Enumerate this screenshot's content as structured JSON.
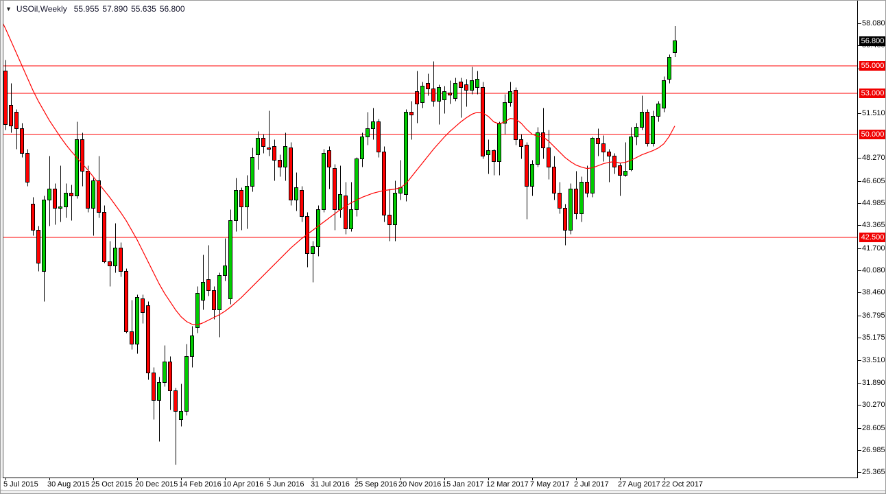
{
  "header": {
    "symbol_timeframe": "USOil,Weekly",
    "open": "55.955",
    "high": "57.890",
    "low": "55.635",
    "close": "56.800"
  },
  "chart_data": {
    "type": "candlestick",
    "symbol": "USOil",
    "timeframe": "Weekly",
    "title": "USOil,Weekly  55.955 57.890 55.635 56.800",
    "last_ohlc": {
      "open": 55.955,
      "high": 57.89,
      "low": 55.635,
      "close": 56.8
    },
    "grid": false,
    "legend_position": "none",
    "y_axis": {
      "range": [
        25.365,
        58.08
      ],
      "tick_labels": [
        "58.080",
        "56.460",
        "54.795",
        "51.510",
        "48.270",
        "46.605",
        "44.985",
        "43.365",
        "41.700",
        "40.080",
        "38.460",
        "36.795",
        "35.175",
        "33.510",
        "31.890",
        "30.270",
        "28.605",
        "26.985",
        "25.365"
      ]
    },
    "x_axis": {
      "labels": [
        {
          "label": "5 Jul 2015",
          "index": 0
        },
        {
          "label": "30 Aug 2015",
          "index": 8
        },
        {
          "label": "25 Oct 2015",
          "index": 16
        },
        {
          "label": "20 Dec 2015",
          "index": 24
        },
        {
          "label": "14 Feb 2016",
          "index": 32
        },
        {
          "label": "10 Apr 2016",
          "index": 40
        },
        {
          "label": "5 Jun 2016",
          "index": 48
        },
        {
          "label": "31 Jul 2016",
          "index": 56
        },
        {
          "label": "25 Sep 2016",
          "index": 64
        },
        {
          "label": "20 Nov 2016",
          "index": 72
        },
        {
          "label": "15 Jan 2017",
          "index": 80
        },
        {
          "label": "12 Mar 2017",
          "index": 88
        },
        {
          "label": "7 May 2017",
          "index": 96
        },
        {
          "label": "2 Jul 2017",
          "index": 104
        },
        {
          "label": "27 Aug 2017",
          "index": 112
        },
        {
          "label": "22 Oct 2017",
          "index": 120
        }
      ]
    },
    "h_lines": [
      55.0,
      53.0,
      50.0,
      42.5
    ],
    "badges": [
      {
        "text": "56.800",
        "value": 56.8,
        "style": "price"
      },
      {
        "text": "55.000",
        "value": 55.0,
        "style": "level"
      },
      {
        "text": "53.000",
        "value": 53.0,
        "style": "level"
      },
      {
        "text": "50.000",
        "value": 50.0,
        "style": "level"
      },
      {
        "text": "42.500",
        "value": 42.5,
        "style": "level"
      }
    ],
    "edge_candle": [
      55.2,
      55.4,
      50.4,
      50.6
    ],
    "candles": [
      [
        54.6,
        55.4,
        50.3,
        50.7
      ],
      [
        52.1,
        53.7,
        50.1,
        50.6
      ],
      [
        51.6,
        51.8,
        48.9,
        50.4
      ],
      [
        50.4,
        50.8,
        48.3,
        48.6
      ],
      [
        48.6,
        48.9,
        46.2,
        46.5
      ],
      [
        44.9,
        45.4,
        42.6,
        43.0
      ],
      [
        43.0,
        43.3,
        40.0,
        40.6
      ],
      [
        40.0,
        45.5,
        37.8,
        45.2
      ],
      [
        45.2,
        48.4,
        43.3,
        46.0
      ],
      [
        46.0,
        46.4,
        43.4,
        44.6
      ],
      [
        44.6,
        47.7,
        43.6,
        44.7
      ],
      [
        44.7,
        46.4,
        43.9,
        45.7
      ],
      [
        45.7,
        46.3,
        43.7,
        45.5
      ],
      [
        45.5,
        50.9,
        45.3,
        49.6
      ],
      [
        49.6,
        50.1,
        46.2,
        47.3
      ],
      [
        47.3,
        47.7,
        44.3,
        44.6
      ],
      [
        44.6,
        46.8,
        42.6,
        46.6
      ],
      [
        46.6,
        48.4,
        43.9,
        44.3
      ],
      [
        44.3,
        44.8,
        40.6,
        40.7
      ],
      [
        40.7,
        42.2,
        38.9,
        40.4
      ],
      [
        40.4,
        43.5,
        39.9,
        41.7
      ],
      [
        41.7,
        42.1,
        39.6,
        40.0
      ],
      [
        40.0,
        40.2,
        35.5,
        35.6
      ],
      [
        35.6,
        37.9,
        34.3,
        34.7
      ],
      [
        34.7,
        38.3,
        34.0,
        38.1
      ],
      [
        38.0,
        38.3,
        36.2,
        37.0
      ],
      [
        37.5,
        37.8,
        32.1,
        32.6
      ],
      [
        32.6,
        33.0,
        29.2,
        30.6
      ],
      [
        30.6,
        32.3,
        27.6,
        31.9
      ],
      [
        31.9,
        34.6,
        31.6,
        33.4
      ],
      [
        33.4,
        33.8,
        29.9,
        31.3
      ],
      [
        31.3,
        31.5,
        25.9,
        29.8
      ],
      [
        29.2,
        31.8,
        28.7,
        29.8
      ],
      [
        29.8,
        34.7,
        29.5,
        33.8
      ],
      [
        33.8,
        36.0,
        33.0,
        35.3
      ],
      [
        35.9,
        38.9,
        35.5,
        38.4
      ],
      [
        37.9,
        41.2,
        37.2,
        39.2
      ],
      [
        39.4,
        41.9,
        38.2,
        38.6
      ],
      [
        38.6,
        38.9,
        36.5,
        37.2
      ],
      [
        37.2,
        39.9,
        35.2,
        39.7
      ],
      [
        39.7,
        42.4,
        39.3,
        40.4
      ],
      [
        38.0,
        44.5,
        37.6,
        43.7
      ],
      [
        43.7,
        46.8,
        42.9,
        45.9
      ],
      [
        45.9,
        46.1,
        43.0,
        44.7
      ],
      [
        44.7,
        47.0,
        43.1,
        46.2
      ],
      [
        46.2,
        49.0,
        45.8,
        48.3
      ],
      [
        48.5,
        50.2,
        47.4,
        49.7
      ],
      [
        49.7,
        50.0,
        48.6,
        49.1
      ],
      [
        49.0,
        51.7,
        48.4,
        48.9
      ],
      [
        49.1,
        49.6,
        46.6,
        48.1
      ],
      [
        48.1,
        48.5,
        46.9,
        47.6
      ],
      [
        47.6,
        50.1,
        46.6,
        49.1
      ],
      [
        49.0,
        49.4,
        44.8,
        45.2
      ],
      [
        45.2,
        47.2,
        44.4,
        46.1
      ],
      [
        45.9,
        46.2,
        43.6,
        44.0
      ],
      [
        44.0,
        44.3,
        40.3,
        41.3
      ],
      [
        41.3,
        42.2,
        39.2,
        41.8
      ],
      [
        41.8,
        44.8,
        41.1,
        44.5
      ],
      [
        44.5,
        48.9,
        44.3,
        48.6
      ],
      [
        48.8,
        49.1,
        46.0,
        47.6
      ],
      [
        47.5,
        47.8,
        43.0,
        44.5
      ],
      [
        44.5,
        47.7,
        43.9,
        45.6
      ],
      [
        45.5,
        46.5,
        42.7,
        43.1
      ],
      [
        43.1,
        46.5,
        42.9,
        44.5
      ],
      [
        44.5,
        48.3,
        44.0,
        48.2
      ],
      [
        48.2,
        50.1,
        47.6,
        49.8
      ],
      [
        49.8,
        51.6,
        49.2,
        50.4
      ],
      [
        50.4,
        51.9,
        49.6,
        50.9
      ],
      [
        50.9,
        51.1,
        48.3,
        48.7
      ],
      [
        48.7,
        49.1,
        43.6,
        44.1
      ],
      [
        44.1,
        46.0,
        42.2,
        43.4
      ],
      [
        43.4,
        46.6,
        42.2,
        45.7
      ],
      [
        45.7,
        48.1,
        45.2,
        46.1
      ],
      [
        45.6,
        51.8,
        45.1,
        51.6
      ],
      [
        51.6,
        52.4,
        49.6,
        51.4
      ],
      [
        53.1,
        54.6,
        50.8,
        52.2
      ],
      [
        52.3,
        53.8,
        51.9,
        53.5
      ],
      [
        53.7,
        54.4,
        52.8,
        53.3
      ],
      [
        53.3,
        55.3,
        52.0,
        52.4
      ],
      [
        52.4,
        53.6,
        50.7,
        53.4
      ],
      [
        52.5,
        53.5,
        51.5,
        53.1
      ],
      [
        53.0,
        53.9,
        52.2,
        52.85
      ],
      [
        52.6,
        54.1,
        52.4,
        53.7
      ],
      [
        53.8,
        54.1,
        51.2,
        53.4
      ],
      [
        53.6,
        54.0,
        52.0,
        53.2
      ],
      [
        53.2,
        54.9,
        52.9,
        53.9
      ],
      [
        53.4,
        54.6,
        52.9,
        54.0
      ],
      [
        53.4,
        53.8,
        48.2,
        48.4
      ],
      [
        48.5,
        49.6,
        47.1,
        48.8
      ],
      [
        48.8,
        48.9,
        47.0,
        48.0
      ],
      [
        48.0,
        50.9,
        47.0,
        50.8
      ],
      [
        50.8,
        52.9,
        50.0,
        52.3
      ],
      [
        52.3,
        53.8,
        52.0,
        53.1
      ],
      [
        53.2,
        53.4,
        49.2,
        49.6
      ],
      [
        49.6,
        50.0,
        48.2,
        49.1
      ],
      [
        49.2,
        49.4,
        43.8,
        46.2
      ],
      [
        46.2,
        48.1,
        45.5,
        47.8
      ],
      [
        47.8,
        50.5,
        47.6,
        50.1
      ],
      [
        50.1,
        51.9,
        48.2,
        49.0
      ],
      [
        49.0,
        50.3,
        46.7,
        47.6
      ],
      [
        47.6,
        48.4,
        45.2,
        45.7
      ],
      [
        45.7,
        46.5,
        44.2,
        44.6
      ],
      [
        44.6,
        44.9,
        41.9,
        43.0
      ],
      [
        43.0,
        46.4,
        42.7,
        46.0
      ],
      [
        46.0,
        47.3,
        43.8,
        44.2
      ],
      [
        44.2,
        46.9,
        43.6,
        46.5
      ],
      [
        46.5,
        47.7,
        45.4,
        45.7
      ],
      [
        45.7,
        49.8,
        45.4,
        49.7
      ],
      [
        49.7,
        50.4,
        48.4,
        49.3
      ],
      [
        49.3,
        49.9,
        48.0,
        48.7
      ],
      [
        48.7,
        48.9,
        46.5,
        48.4
      ],
      [
        48.4,
        48.6,
        47.1,
        47.6
      ],
      [
        47.7,
        47.9,
        45.5,
        47.0
      ],
      [
        47.0,
        49.4,
        46.9,
        47.3
      ],
      [
        47.4,
        50.5,
        47.3,
        49.8
      ],
      [
        49.8,
        50.8,
        49.2,
        50.5
      ],
      [
        50.5,
        52.8,
        50.3,
        51.6
      ],
      [
        51.6,
        51.8,
        49.1,
        49.3
      ],
      [
        49.3,
        51.7,
        49.1,
        51.3
      ],
      [
        51.3,
        52.4,
        50.9,
        52.2
      ],
      [
        51.9,
        54.2,
        51.6,
        53.9
      ],
      [
        54.0,
        55.8,
        53.7,
        55.6
      ],
      [
        55.955,
        57.89,
        55.635,
        56.8
      ]
    ],
    "ma_line": [
      57.7,
      56.8,
      55.9,
      55.0,
      54.1,
      53.2,
      52.4,
      51.7,
      51.0,
      50.4,
      49.8,
      49.25,
      48.75,
      48.3,
      47.85,
      47.4,
      46.9,
      46.4,
      45.9,
      45.4,
      44.85,
      44.3,
      43.7,
      43.0,
      42.3,
      41.5,
      40.7,
      39.9,
      39.1,
      38.4,
      37.8,
      37.2,
      36.7,
      36.35,
      36.15,
      36.1,
      36.25,
      36.45,
      36.65,
      36.85,
      37.1,
      37.4,
      37.75,
      38.1,
      38.5,
      38.9,
      39.3,
      39.7,
      40.1,
      40.5,
      40.9,
      41.3,
      41.7,
      42.05,
      42.4,
      42.7,
      43.0,
      43.3,
      43.6,
      43.9,
      44.2,
      44.5,
      44.75,
      45.0,
      45.2,
      45.4,
      45.55,
      45.7,
      45.8,
      45.9,
      45.95,
      46.0,
      46.1,
      46.4,
      46.9,
      47.4,
      47.9,
      48.4,
      48.9,
      49.35,
      49.8,
      50.2,
      50.55,
      50.9,
      51.2,
      51.45,
      51.6,
      51.55,
      51.3,
      50.9,
      50.75,
      50.9,
      51.15,
      51.1,
      50.8,
      50.35,
      50.0,
      49.85,
      49.8,
      49.5,
      49.1,
      48.7,
      48.3,
      48.0,
      47.75,
      47.6,
      47.5,
      47.55,
      47.7,
      47.85,
      47.95,
      48.0,
      47.9,
      47.95,
      48.1,
      48.3,
      48.5,
      48.65,
      48.8,
      49.0,
      49.3,
      49.85,
      50.6
    ],
    "colors": {
      "bull": "#00CC00",
      "bear": "#FF0000",
      "outline": "#000000",
      "ma": "#FF0000",
      "h_line": "#FF0000",
      "level_badge_bg": "#F00000",
      "price_badge_bg": "#000000",
      "badge_text": "#FFFFFF",
      "axis_text": "#000000",
      "title_text": "#14142B",
      "background": "#FFFFFF"
    }
  }
}
